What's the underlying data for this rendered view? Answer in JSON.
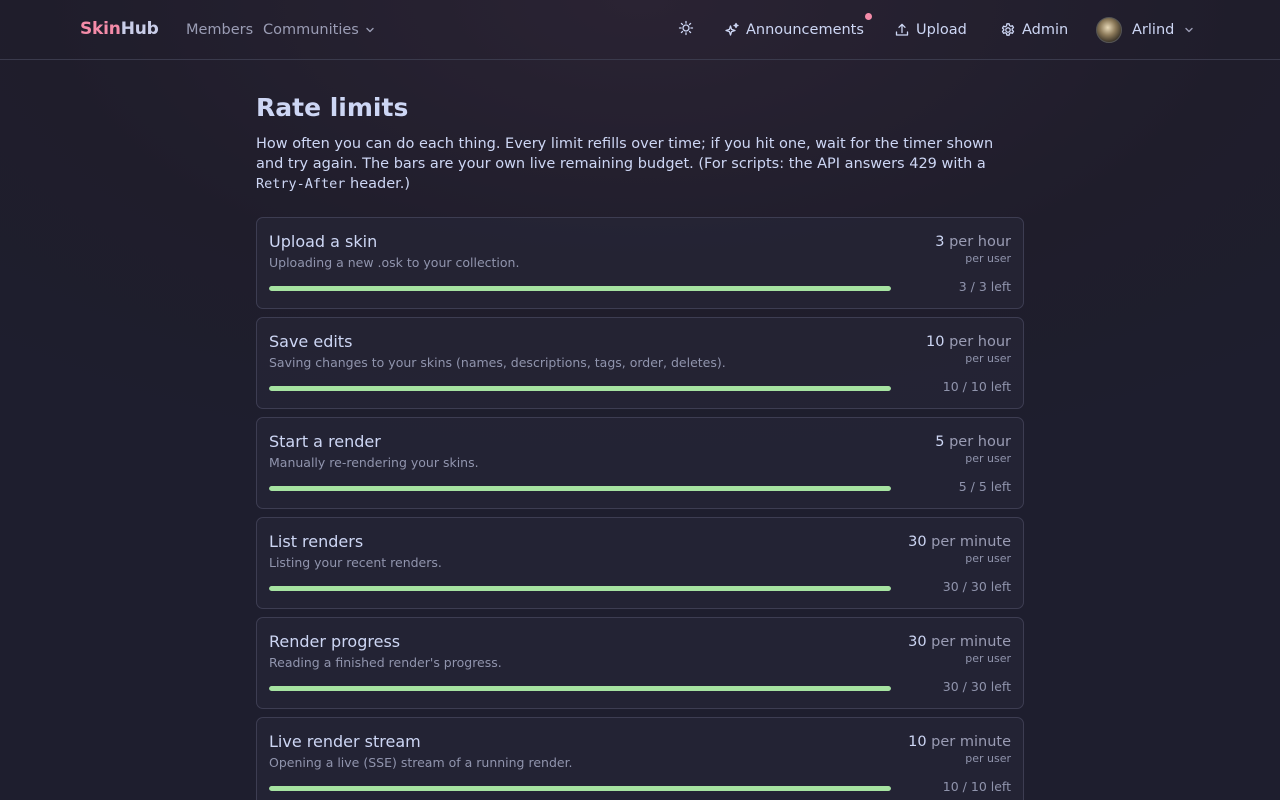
{
  "nav": {
    "brand_part1": "Skin",
    "brand_part2": "Hub",
    "members": "Members",
    "communities": "Communities",
    "announcements": "Announcements",
    "upload": "Upload",
    "admin": "Admin",
    "user": "Arlind"
  },
  "page": {
    "title": "Rate limits",
    "intro_1": "How often you can do each thing. Every limit refills over time; if you hit one, wait for the timer shown and try again. The bars are your own live remaining budget. (For scripts: the API answers 429 with a ",
    "intro_code": "Retry-After",
    "intro_2": " header.)"
  },
  "limits": [
    {
      "title": "Upload a skin",
      "description": "Uploading a new .osk to your collection.",
      "count": "3",
      "period": "per hour",
      "scope": "per user",
      "remaining": 3,
      "total": 3,
      "left_text": "3 / 3 left"
    },
    {
      "title": "Save edits",
      "description": "Saving changes to your skins (names, descriptions, tags, order, deletes).",
      "count": "10",
      "period": "per hour",
      "scope": "per user",
      "remaining": 10,
      "total": 10,
      "left_text": "10 / 10 left"
    },
    {
      "title": "Start a render",
      "description": "Manually re-rendering your skins.",
      "count": "5",
      "period": "per hour",
      "scope": "per user",
      "remaining": 5,
      "total": 5,
      "left_text": "5 / 5 left"
    },
    {
      "title": "List renders",
      "description": "Listing your recent renders.",
      "count": "30",
      "period": "per minute",
      "scope": "per user",
      "remaining": 30,
      "total": 30,
      "left_text": "30 / 30 left"
    },
    {
      "title": "Render progress",
      "description": "Reading a finished render's progress.",
      "count": "30",
      "period": "per minute",
      "scope": "per user",
      "remaining": 30,
      "total": 30,
      "left_text": "30 / 30 left"
    },
    {
      "title": "Live render stream",
      "description": "Opening a live (SSE) stream of a running render.",
      "count": "10",
      "period": "per minute",
      "scope": "per user",
      "remaining": 10,
      "total": 10,
      "left_text": "10 / 10 left"
    }
  ],
  "colors": {
    "brand_accent": "#f38ba8",
    "bar_fill": "#a6e3a1",
    "notification_dot": "#f38ba8"
  },
  "icons": {
    "theme_toggle": "sun-icon",
    "announcements": "sparkles-icon",
    "upload": "upload-icon",
    "admin": "gear-icon",
    "dropdown": "chevron-down-icon"
  }
}
